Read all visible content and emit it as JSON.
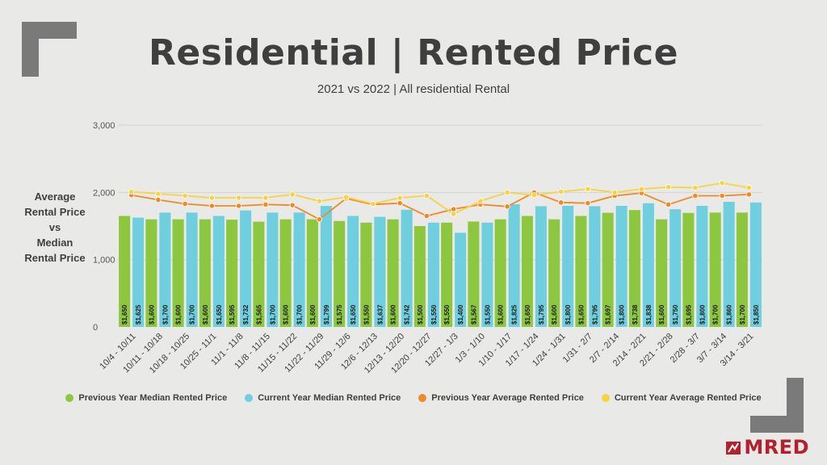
{
  "header": {
    "title": "Residential | Rented Price",
    "subtitle": "2021 vs 2022 | All residential Rental"
  },
  "y_axis_label": [
    "Average",
    "Rental Price",
    "vs",
    "Median",
    "Rental Price"
  ],
  "logo_text": "MRED",
  "colors": {
    "prev_median": "#8dc63f",
    "curr_median": "#6fcfdf",
    "prev_avg": "#f08a24",
    "curr_avg": "#f7d341",
    "logo": "#b3202e"
  },
  "chart_data": {
    "type": "bar",
    "title": "Residential | Rented Price",
    "subtitle": "2021 vs 2022 | All residential Rental",
    "ylabel": "Average Rental Price vs Median Rental Price",
    "ylim": [
      0,
      3000
    ],
    "yticks": [
      "0",
      "1,000",
      "2,000",
      "3,000"
    ],
    "grid": true,
    "legend_position": "bottom",
    "categories": [
      "10/4 - 10/11",
      "10/11 - 10/18",
      "10/18 - 10/25",
      "10/25 - 11/1",
      "11/1 - 11/8",
      "11/8 - 11/15",
      "11/15 - 11/22",
      "11/22 - 11/29",
      "11/29 - 12/6",
      "12/6 - 12/13",
      "12/13 - 12/20",
      "12/20 - 12/27",
      "12/27 - 1/3",
      "1/3 - 1/10",
      "1/10 - 1/17",
      "1/17 - 1/24",
      "1/24 - 1/31",
      "1/31 - 2/7",
      "2/7 - 2/14",
      "2/14 - 2/21",
      "2/21 - 2/28",
      "2/28 - 3/7",
      "3/7 - 3/14",
      "3/14 - 3/21"
    ],
    "series": [
      {
        "name": "Previous Year Median Rented Price",
        "kind": "bar",
        "values": [
          1650,
          1600,
          1600,
          1600,
          1595,
          1565,
          1600,
          1600,
          1575,
          1550,
          1600,
          1500,
          1550,
          1567,
          1600,
          1650,
          1600,
          1650,
          1697,
          1738,
          1600,
          1695,
          1700,
          1700
        ],
        "labels": [
          "$1,650",
          "$1,600",
          "$1,600",
          "$1,600",
          "$1,595",
          "$1,565",
          "$1,600",
          "$1,600",
          "$1,575",
          "$1,550",
          "$1,600",
          "$1,500",
          "$1,550",
          "$1,567",
          "$1,600",
          "$1,650",
          "$1,600",
          "$1,650",
          "$1,697",
          "$1,738",
          "$1,600",
          "$1,695",
          "$1,700",
          "$1,700"
        ]
      },
      {
        "name": "Current Year Median Rented Price",
        "kind": "bar",
        "values": [
          1625,
          1700,
          1700,
          1650,
          1732,
          1700,
          1700,
          1799,
          1650,
          1637,
          1742,
          1550,
          1400,
          1550,
          1825,
          1795,
          1800,
          1795,
          1800,
          1838,
          1750,
          1800,
          1860,
          1850
        ],
        "labels": [
          "$1,625",
          "$1,700",
          "$1,700",
          "$1,650",
          "$1,732",
          "$1,700",
          "$1,700",
          "$1,799",
          "$1,650",
          "$1,637",
          "$1,742",
          "$1,550",
          "$1,400",
          "$1,550",
          "$1,825",
          "$1,795",
          "$1,800",
          "$1,795",
          "$1,800",
          "$1,838",
          "$1,750",
          "$1,800",
          "$1,860",
          "$1,850"
        ]
      },
      {
        "name": "Previous Year Average Rented Price",
        "kind": "line",
        "values": [
          1960,
          1890,
          1830,
          1800,
          1800,
          1820,
          1810,
          1600,
          1910,
          1820,
          1840,
          1650,
          1750,
          1820,
          1790,
          2000,
          1850,
          1840,
          1950,
          1990,
          1820,
          1950,
          1950,
          1970
        ]
      },
      {
        "name": "Current Year Average Rented Price",
        "kind": "line",
        "values": [
          2010,
          1980,
          1950,
          1920,
          1920,
          1920,
          1970,
          1870,
          1930,
          1830,
          1920,
          1950,
          1680,
          1870,
          2000,
          1960,
          2010,
          2050,
          2000,
          2050,
          2080,
          2070,
          2140,
          2070
        ]
      }
    ]
  }
}
